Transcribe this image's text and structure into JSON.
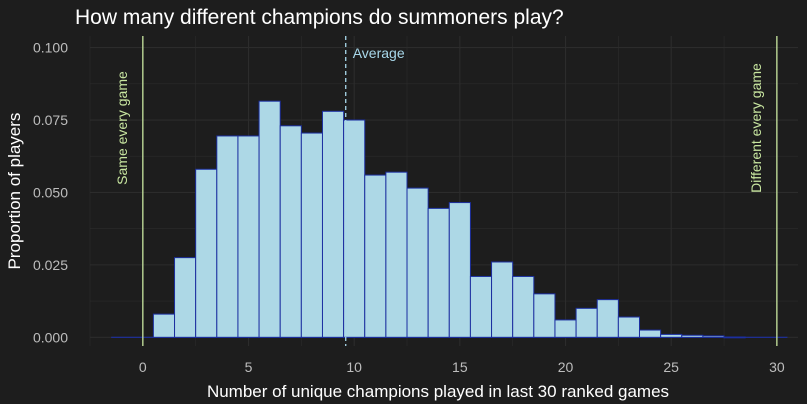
{
  "chart_data": {
    "type": "bar",
    "title": "How many different champions do summoners play?",
    "xlabel": "Number of unique champions played in last 30 ranked games",
    "ylabel": "Proportion of players",
    "x": [
      0,
      1,
      2,
      3,
      4,
      5,
      6,
      7,
      8,
      9,
      10,
      11,
      12,
      13,
      14,
      15,
      16,
      17,
      18,
      19,
      20,
      21,
      22,
      23,
      24,
      25,
      26,
      27,
      28,
      29,
      30
    ],
    "values": [
      0.0,
      0.008,
      0.0275,
      0.058,
      0.0695,
      0.0695,
      0.0815,
      0.073,
      0.0705,
      0.078,
      0.075,
      0.056,
      0.057,
      0.0515,
      0.0445,
      0.0465,
      0.021,
      0.026,
      0.021,
      0.015,
      0.006,
      0.01,
      0.013,
      0.007,
      0.0025,
      0.001,
      0.0007,
      0.0005,
      0.0001,
      0.0,
      0.0
    ],
    "xlim": [
      -2.5,
      31
    ],
    "ylim": [
      -0.003,
      0.104
    ],
    "xticks": [
      0,
      5,
      10,
      15,
      20,
      25,
      30
    ],
    "xtick_labels": [
      "0",
      "5",
      "10",
      "15",
      "20",
      "25",
      "30"
    ],
    "yticks": [
      0,
      0.025,
      0.05,
      0.075,
      0.1
    ],
    "ytick_labels": [
      "0.000",
      "0.025",
      "0.050",
      "0.075",
      "0.100"
    ],
    "grid": true,
    "reference_lines": [
      {
        "x": 0,
        "label": "Same every game",
        "style": "solid",
        "color": "#c8e6a0"
      },
      {
        "x": 30,
        "label": "Different every game",
        "style": "solid",
        "color": "#c8e6a0"
      },
      {
        "x": 9.6,
        "label": "Average",
        "style": "dashed",
        "color": "#a8d8ea"
      }
    ],
    "colors": {
      "background": "#1d1d1d",
      "grid": "#2c2c2c",
      "bar_fill": "#add8e6",
      "bar_edge": "#1c2fa0"
    }
  }
}
